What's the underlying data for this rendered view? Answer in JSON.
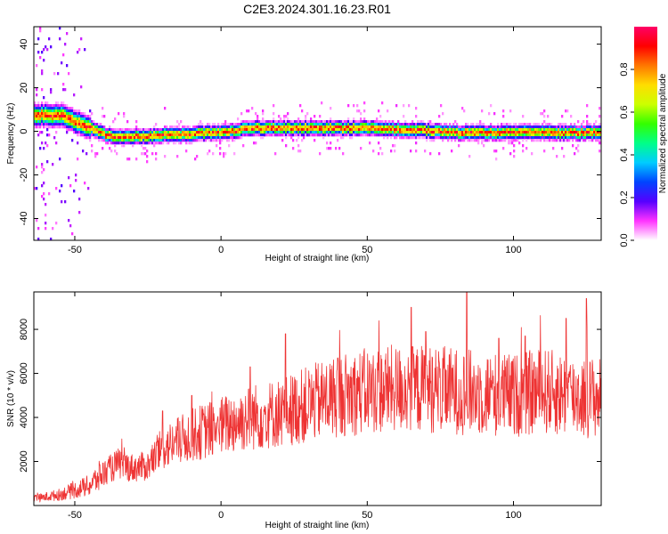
{
  "title": "C2E3.2024.301.16.23.R01",
  "chart_data": [
    {
      "type": "heatmap",
      "xlabel": "Height of straight line (km)",
      "ylabel": "Frequency (Hz)",
      "xlim": [
        -64,
        130
      ],
      "ylim": [
        -50,
        48
      ],
      "xticks": [
        -50,
        0,
        50,
        100
      ],
      "yticks": [
        -40,
        -20,
        0,
        20,
        40
      ],
      "grid": false,
      "colorbar": {
        "label": "Normalized spectral amplitude",
        "range": [
          0,
          1
        ],
        "ticks": [
          "0.0",
          "0.2",
          "0.4",
          "0.6",
          "0.8"
        ],
        "colors": [
          "#ffffff",
          "#ff33ff",
          "#5500ff",
          "#0044ff",
          "#00ccff",
          "#00ff88",
          "#33ff00",
          "#ccff00",
          "#ffdd00",
          "#ff7700",
          "#ff0000",
          "#ff0066"
        ]
      },
      "ridge": {
        "x": [
          -64,
          -60,
          -55,
          -50,
          -45,
          -40,
          -35,
          -30,
          -25,
          -20,
          -15,
          -10,
          -5,
          0,
          5,
          10,
          20,
          30,
          40,
          50,
          60,
          70,
          80,
          90,
          100,
          110,
          120,
          130
        ],
        "freq": [
          8,
          8,
          8,
          5,
          2,
          -1,
          -2,
          -2,
          -2,
          -1,
          -1,
          -0.5,
          0,
          0,
          1,
          2,
          2,
          2,
          2,
          2,
          1.5,
          1,
          0,
          0,
          0,
          0,
          0,
          0
        ]
      }
    },
    {
      "type": "line",
      "xlabel": "Height of straight line (km)",
      "ylabel": "SNR (10 * v/v)",
      "xlim": [
        -64,
        130
      ],
      "ylim": [
        0,
        9700
      ],
      "xticks": [
        -50,
        0,
        50,
        100
      ],
      "yticks": [
        2000,
        4000,
        6000,
        8000
      ],
      "grid": false,
      "color": "#ee3333",
      "trend": {
        "x": [
          -64,
          -55,
          -45,
          -40,
          -35,
          -30,
          -25,
          -20,
          -10,
          0,
          10,
          20,
          30,
          40,
          50,
          60,
          70,
          80,
          90,
          100,
          110,
          120,
          130
        ],
        "y": [
          300,
          500,
          900,
          1500,
          1900,
          1700,
          1800,
          2600,
          3200,
          3600,
          4000,
          4200,
          4600,
          5000,
          5200,
          5300,
          5300,
          5200,
          5100,
          5000,
          5200,
          5000,
          4900
        ]
      },
      "peaks": [
        {
          "x": -20,
          "y": 4300
        },
        {
          "x": -10,
          "y": 5000
        },
        {
          "x": 10,
          "y": 6300
        },
        {
          "x": 22,
          "y": 7800
        },
        {
          "x": 40,
          "y": 6700
        },
        {
          "x": 65,
          "y": 9000
        },
        {
          "x": 70,
          "y": 7900
        },
        {
          "x": 84,
          "y": 9700
        },
        {
          "x": 95,
          "y": 7600
        },
        {
          "x": 104,
          "y": 7700
        },
        {
          "x": 118,
          "y": 8500
        },
        {
          "x": 125,
          "y": 9400
        }
      ]
    }
  ]
}
